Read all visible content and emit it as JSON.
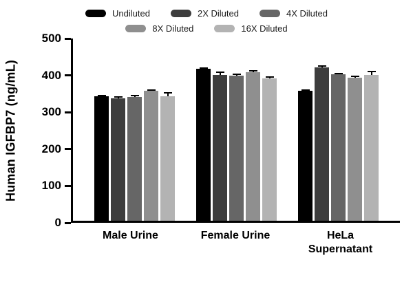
{
  "chart_data": {
    "type": "bar",
    "title": "",
    "xlabel": "",
    "ylabel": "Human IGFBP7 (ng/mL)",
    "ylim": [
      0,
      500
    ],
    "yticks": [
      0,
      100,
      200,
      300,
      400,
      500
    ],
    "grid": false,
    "legend_position": "top",
    "legend_rows": [
      [
        "Undiluted",
        "2X Diluted",
        "4X Diluted"
      ],
      [
        "8X Diluted",
        "16X Diluted"
      ]
    ],
    "categories": [
      "Male Urine",
      "Female Urine",
      "HeLa\nSupernatant"
    ],
    "series": [
      {
        "name": "Undiluted",
        "color": "#000000",
        "values": [
          338,
          412,
          352
        ],
        "errors": [
          4,
          3,
          3
        ]
      },
      {
        "name": "2X Diluted",
        "color": "#3d3d3d",
        "values": [
          333,
          396,
          417
        ],
        "errors": [
          4,
          9,
          4
        ]
      },
      {
        "name": "4X Diluted",
        "color": "#666666",
        "values": [
          335,
          394,
          397
        ],
        "errors": [
          7,
          5,
          4
        ]
      },
      {
        "name": "8X Diluted",
        "color": "#8f8f8f",
        "values": [
          352,
          403,
          388
        ],
        "errors": [
          4,
          5,
          6
        ]
      },
      {
        "name": "16X Diluted",
        "color": "#b3b3b3",
        "values": [
          337,
          387,
          396
        ],
        "errors": [
          11,
          5,
          11
        ]
      }
    ],
    "error_bar_color": "#000000",
    "axis_color": "#000000"
  }
}
